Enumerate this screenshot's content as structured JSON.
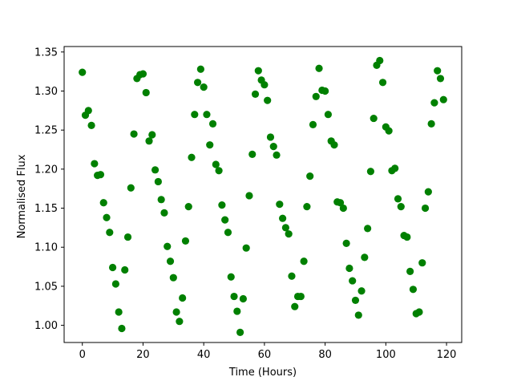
{
  "chart_data": {
    "type": "scatter",
    "title": "",
    "xlabel": "Time (Hours)",
    "ylabel": "Normalised Flux",
    "xlim": [
      -6,
      125
    ],
    "ylim": [
      0.978,
      1.357
    ],
    "xticks": [
      0,
      20,
      40,
      60,
      80,
      100,
      120
    ],
    "yticks": [
      1.0,
      1.05,
      1.1,
      1.15,
      1.2,
      1.25,
      1.3,
      1.35
    ],
    "xtick_labels": [
      "0",
      "20",
      "40",
      "60",
      "80",
      "100",
      "120"
    ],
    "ytick_labels": [
      "1.00",
      "1.05",
      "1.10",
      "1.15",
      "1.20",
      "1.25",
      "1.30",
      "1.35"
    ],
    "grid": false,
    "marker_color": "#008000",
    "series": [
      {
        "points": [
          [
            0,
            1.324
          ],
          [
            1,
            1.269
          ],
          [
            2,
            1.275
          ],
          [
            3,
            1.256
          ],
          [
            4,
            1.207
          ],
          [
            5,
            1.192
          ],
          [
            6,
            1.193
          ],
          [
            7,
            1.157
          ],
          [
            8,
            1.138
          ],
          [
            9,
            1.119
          ],
          [
            10,
            1.074
          ],
          [
            11,
            1.053
          ],
          [
            12,
            1.017
          ],
          [
            13,
            0.996
          ],
          [
            14,
            1.071
          ],
          [
            15,
            1.113
          ],
          [
            16,
            1.176
          ],
          [
            17,
            1.245
          ],
          [
            18,
            1.316
          ],
          [
            19,
            1.321
          ],
          [
            20,
            1.322
          ],
          [
            21,
            1.298
          ],
          [
            22,
            1.236
          ],
          [
            23,
            1.244
          ],
          [
            24,
            1.199
          ],
          [
            25,
            1.184
          ],
          [
            26,
            1.161
          ],
          [
            27,
            1.144
          ],
          [
            28,
            1.101
          ],
          [
            29,
            1.082
          ],
          [
            30,
            1.061
          ],
          [
            31,
            1.017
          ],
          [
            32,
            1.005
          ],
          [
            33,
            1.035
          ],
          [
            34,
            1.108
          ],
          [
            35,
            1.152
          ],
          [
            36,
            1.215
          ],
          [
            37,
            1.27
          ],
          [
            38,
            1.311
          ],
          [
            39,
            1.328
          ],
          [
            40,
            1.305
          ],
          [
            41,
            1.27
          ],
          [
            42,
            1.231
          ],
          [
            43,
            1.258
          ],
          [
            44,
            1.206
          ],
          [
            45,
            1.198
          ],
          [
            46,
            1.154
          ],
          [
            47,
            1.135
          ],
          [
            48,
            1.119
          ],
          [
            49,
            1.062
          ],
          [
            50,
            1.037
          ],
          [
            51,
            1.018
          ],
          [
            52,
            0.991
          ],
          [
            53,
            1.034
          ],
          [
            54,
            1.099
          ],
          [
            55,
            1.166
          ],
          [
            56,
            1.219
          ],
          [
            57,
            1.296
          ],
          [
            58,
            1.326
          ],
          [
            59,
            1.314
          ],
          [
            60,
            1.308
          ],
          [
            61,
            1.288
          ],
          [
            62,
            1.241
          ],
          [
            63,
            1.229
          ],
          [
            64,
            1.218
          ],
          [
            65,
            1.155
          ],
          [
            66,
            1.137
          ],
          [
            67,
            1.125
          ],
          [
            68,
            1.117
          ],
          [
            69,
            1.063
          ],
          [
            70,
            1.024
          ],
          [
            71,
            1.037
          ],
          [
            72,
            1.037
          ],
          [
            73,
            1.082
          ],
          [
            74,
            1.152
          ],
          [
            75,
            1.191
          ],
          [
            76,
            1.257
          ],
          [
            77,
            1.293
          ],
          [
            78,
            1.329
          ],
          [
            79,
            1.301
          ],
          [
            80,
            1.3
          ],
          [
            81,
            1.27
          ],
          [
            82,
            1.236
          ],
          [
            83,
            1.231
          ],
          [
            84,
            1.158
          ],
          [
            85,
            1.157
          ],
          [
            86,
            1.15
          ],
          [
            87,
            1.105
          ],
          [
            88,
            1.073
          ],
          [
            89,
            1.057
          ],
          [
            90,
            1.032
          ],
          [
            91,
            1.013
          ],
          [
            92,
            1.044
          ],
          [
            93,
            1.087
          ],
          [
            94,
            1.124
          ],
          [
            95,
            1.197
          ],
          [
            96,
            1.265
          ],
          [
            97,
            1.333
          ],
          [
            98,
            1.339
          ],
          [
            99,
            1.311
          ],
          [
            100,
            1.254
          ],
          [
            101,
            1.249
          ],
          [
            102,
            1.198
          ],
          [
            103,
            1.201
          ],
          [
            104,
            1.162
          ],
          [
            105,
            1.152
          ],
          [
            106,
            1.115
          ],
          [
            107,
            1.113
          ],
          [
            108,
            1.069
          ],
          [
            109,
            1.046
          ],
          [
            110,
            1.015
          ],
          [
            111,
            1.017
          ],
          [
            112,
            1.08
          ],
          [
            113,
            1.15
          ],
          [
            114,
            1.171
          ],
          [
            115,
            1.258
          ],
          [
            116,
            1.285
          ],
          [
            117,
            1.326
          ],
          [
            118,
            1.316
          ],
          [
            119,
            1.289
          ]
        ]
      }
    ]
  }
}
